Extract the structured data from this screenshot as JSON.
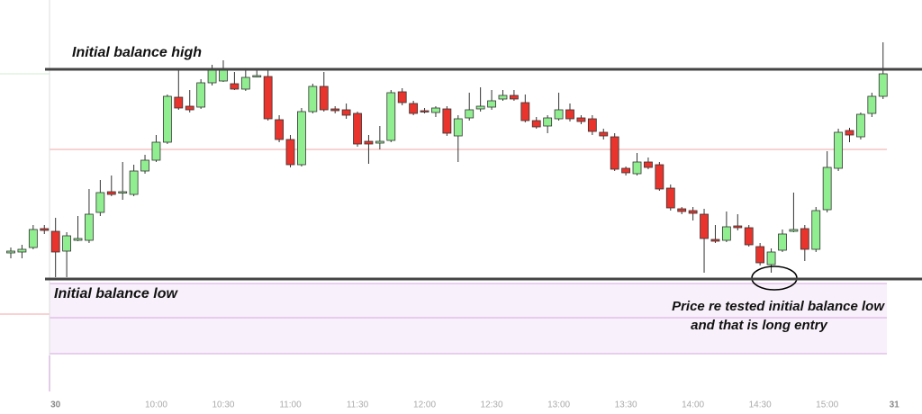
{
  "chart_data": {
    "type": "candlestick",
    "up_color": "#90ee90",
    "down_color": "#e8342c",
    "ylim": [
      0,
      460
    ],
    "xticks": [
      {
        "value": 4,
        "label": "30"
      },
      {
        "value": 13,
        "label": "10:00"
      },
      {
        "value": 19,
        "label": "10:30"
      },
      {
        "value": 25,
        "label": "11:00"
      },
      {
        "value": 31,
        "label": "11:30"
      },
      {
        "value": 37,
        "label": "12:00"
      },
      {
        "value": 43,
        "label": "12:30"
      },
      {
        "value": 49,
        "label": "13:00"
      },
      {
        "value": 55,
        "label": "13:30"
      },
      {
        "value": 61,
        "label": "14:00"
      },
      {
        "value": 67,
        "label": "14:30"
      },
      {
        "value": 73,
        "label": "15:00"
      },
      {
        "value": 79,
        "label": "31"
      }
    ],
    "open": [
      179,
      180,
      185,
      206,
      203,
      181,
      193,
      193,
      224,
      247,
      246,
      244,
      270,
      282,
      302,
      352,
      342,
      341,
      368,
      370,
      367,
      361,
      376,
      375,
      327,
      305,
      277,
      336,
      364,
      339,
      338,
      334,
      303,
      301,
      304,
      358,
      345,
      337,
      335,
      339,
      309,
      329,
      339,
      341,
      350,
      354,
      346,
      326,
      320,
      328,
      338,
      329,
      328,
      313,
      308,
      273,
      267,
      280,
      277,
      251,
      228,
      226,
      222,
      194,
      193,
      209,
      207,
      186,
      166,
      182,
      203,
      206,
      183,
      227,
      273,
      315,
      308,
      334,
      353
    ],
    "high": [
      185,
      188,
      210,
      210,
      218,
      202,
      220,
      250,
      260,
      265,
      280,
      277,
      288,
      310,
      355,
      382,
      360,
      372,
      388,
      393,
      380,
      382,
      382,
      382,
      332,
      310,
      340,
      367,
      380,
      342,
      345,
      336,
      310,
      320,
      360,
      362,
      348,
      340,
      342,
      342,
      332,
      357,
      363,
      360,
      360,
      360,
      355,
      330,
      332,
      357,
      345,
      332,
      332,
      317,
      312,
      275,
      290,
      285,
      280,
      255,
      230,
      230,
      228,
      210,
      225,
      222,
      210,
      190,
      184,
      205,
      246,
      210,
      230,
      292,
      317,
      318,
      335,
      357,
      413
    ],
    "low": [
      173,
      173,
      183,
      200,
      152,
      152,
      192,
      190,
      220,
      242,
      238,
      242,
      267,
      280,
      300,
      338,
      335,
      339,
      365,
      369,
      360,
      359,
      374,
      326,
      302,
      274,
      275,
      334,
      336,
      334,
      328,
      297,
      278,
      294,
      302,
      343,
      332,
      334,
      330,
      309,
      280,
      326,
      336,
      338,
      348,
      348,
      324,
      317,
      312,
      326,
      325,
      322,
      310,
      305,
      270,
      265,
      265,
      272,
      248,
      226,
      222,
      215,
      157,
      190,
      191,
      204,
      186,
      165,
      157,
      180,
      202,
      170,
      180,
      224,
      270,
      302,
      305,
      330,
      350
    ],
    "close": [
      181,
      183,
      205,
      204,
      180,
      198,
      195,
      222,
      246,
      244,
      247,
      270,
      282,
      302,
      353,
      340,
      338,
      368,
      382,
      382,
      361,
      374,
      376,
      328,
      305,
      277,
      336,
      364,
      338,
      337,
      332,
      300,
      300,
      303,
      357,
      346,
      334,
      336,
      340,
      312,
      328,
      338,
      342,
      348,
      354,
      350,
      326,
      319,
      329,
      338,
      328,
      325,
      314,
      309,
      272,
      268,
      280,
      274,
      250,
      229,
      225,
      223,
      195,
      192,
      208,
      207,
      188,
      168,
      180,
      200,
      205,
      183,
      226,
      274,
      313,
      310,
      333,
      353,
      378
    ],
    "levels": [
      {
        "value": 383,
        "label": "Initial balance high"
      },
      {
        "value": 150,
        "label": "Initial balance low"
      }
    ],
    "annotation": [
      "Price re tested initial balance low",
      "and that is long entry"
    ]
  }
}
